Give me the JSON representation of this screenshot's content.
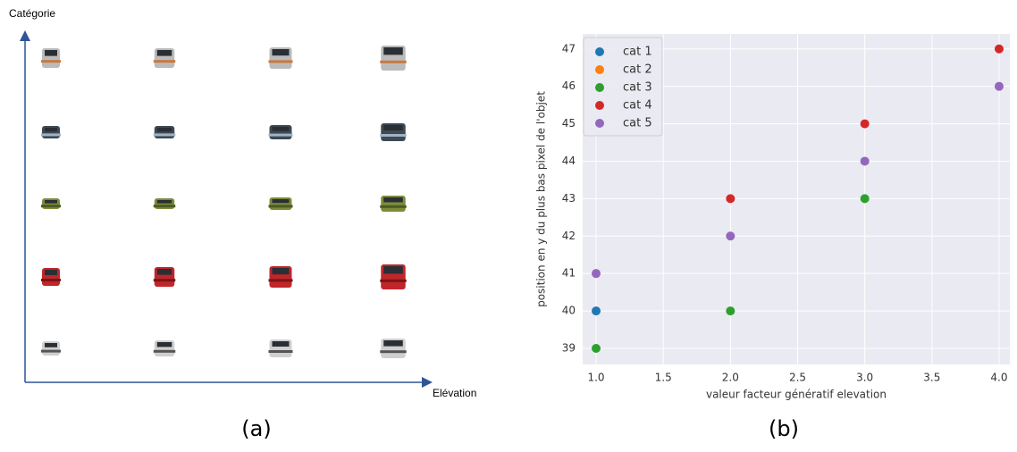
{
  "diagram": {
    "y_axis_label": "Catégorie",
    "x_axis_label": "Elévation",
    "caption": "(a)"
  },
  "chart_data": {
    "type": "scatter",
    "caption": "(b)",
    "xlabel": "valeur facteur génératif elevation",
    "ylabel": "position en y du plus bas pixel de l'objet",
    "series": [
      {
        "name": "cat 1",
        "color": "#1f77b4",
        "x": [
          1
        ],
        "values": [
          40
        ]
      },
      {
        "name": "cat 2",
        "color": "#ff7f0e",
        "x": [],
        "values": []
      },
      {
        "name": "cat 3",
        "color": "#2ca02c",
        "x": [
          1,
          2,
          3
        ],
        "values": [
          39,
          40,
          43
        ]
      },
      {
        "name": "cat 4",
        "color": "#d62728",
        "x": [
          2,
          3,
          4
        ],
        "values": [
          43,
          45,
          47
        ]
      },
      {
        "name": "cat 5",
        "color": "#9467bd",
        "x": [
          1,
          2,
          3,
          4
        ],
        "values": [
          41,
          42,
          44,
          46
        ]
      }
    ],
    "xlim": [
      0.9,
      4.08
    ],
    "xticks": [
      {
        "value": 1,
        "label": "1.0"
      },
      {
        "value": 1.5,
        "label": "1.5"
      },
      {
        "value": 2,
        "label": "2.0"
      },
      {
        "value": 2.5,
        "label": "2.5"
      },
      {
        "value": 3,
        "label": "3.0"
      },
      {
        "value": 3.5,
        "label": "3.5"
      },
      {
        "value": 4,
        "label": "4.0"
      }
    ],
    "ylim": [
      38.57,
      47.4
    ],
    "yticks": [
      39,
      40,
      41,
      42,
      43,
      44,
      45,
      46,
      47
    ],
    "grid": true,
    "legend": "upper left"
  }
}
